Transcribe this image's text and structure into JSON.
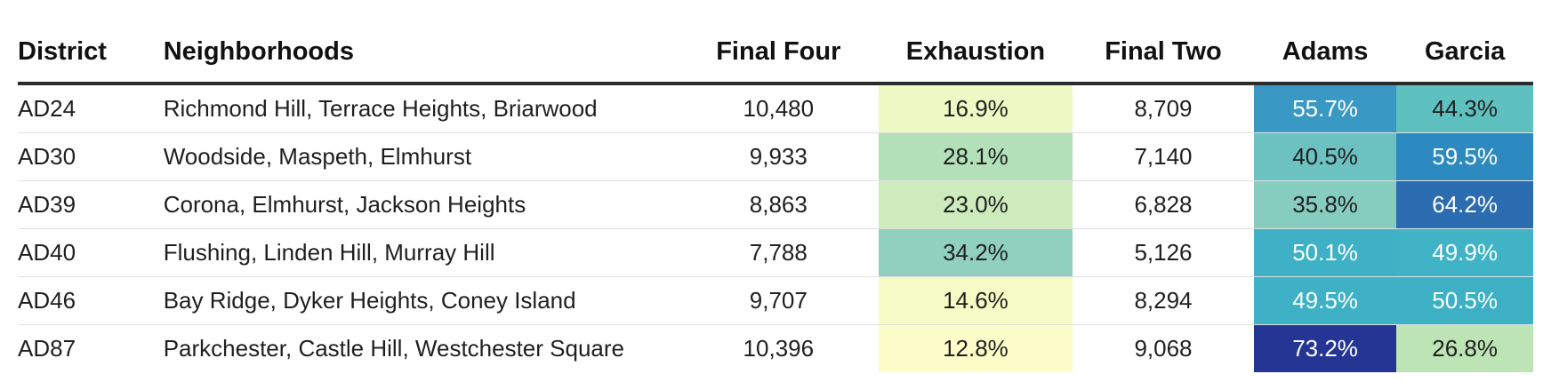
{
  "chart_data": {
    "type": "table",
    "columns": [
      "District",
      "Neighborhoods",
      "Final Four",
      "Exhaustion",
      "Final Two",
      "Adams",
      "Garcia"
    ],
    "rows": [
      [
        "AD24",
        "Richmond Hill, Terrace Heights, Briarwood",
        "10,480",
        "16.9%",
        "8,709",
        "55.7%",
        "44.3%"
      ],
      [
        "AD30",
        "Woodside, Maspeth, Elmhurst",
        "9,933",
        "28.1%",
        "7,140",
        "40.5%",
        "59.5%"
      ],
      [
        "AD39",
        "Corona, Elmhurst, Jackson Heights",
        "8,863",
        "23.0%",
        "6,828",
        "35.8%",
        "64.2%"
      ],
      [
        "AD40",
        "Flushing, Linden Hill, Murray Hill",
        "7,788",
        "34.2%",
        "5,126",
        "50.1%",
        "49.9%"
      ],
      [
        "AD46",
        "Bay Ridge, Dyker Heights, Coney Island",
        "9,707",
        "14.6%",
        "8,294",
        "49.5%",
        "50.5%"
      ],
      [
        "AD87",
        "Parkchester, Castle Hill, Westchester Square",
        "10,396",
        "12.8%",
        "9,068",
        "73.2%",
        "26.8%"
      ]
    ],
    "cell_colors": {
      "Exhaustion": [
        "#edf8c4",
        "#b3e0b9",
        "#cdebbd",
        "#91d0bd",
        "#f6fbc6",
        "#fcfdc8"
      ],
      "Adams": [
        "#3a98c4",
        "#6cc2c1",
        "#86cdc0",
        "#3eb1c6",
        "#3eb1c6",
        "#253594"
      ],
      "Garcia": [
        "#5fc0c0",
        "#2d8ac1",
        "#2c6cb0",
        "#40b3c6",
        "#3eb0c5",
        "#bce4b5"
      ]
    },
    "light_text_cells": {
      "Adams": [
        true,
        false,
        false,
        true,
        true,
        true
      ],
      "Garcia": [
        false,
        true,
        true,
        true,
        true,
        false
      ]
    }
  }
}
